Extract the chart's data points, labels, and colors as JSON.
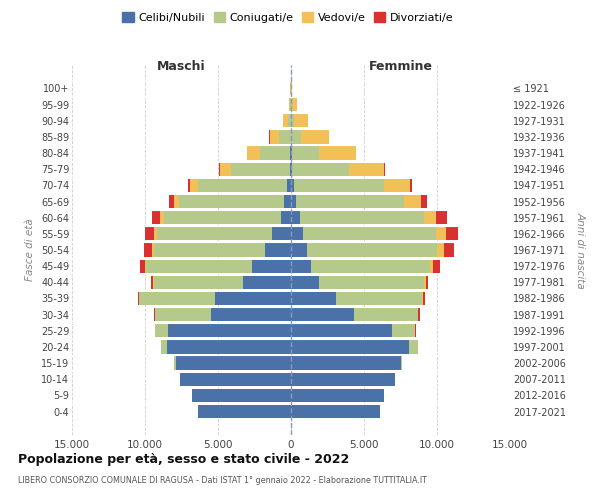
{
  "age_groups": [
    "0-4",
    "5-9",
    "10-14",
    "15-19",
    "20-24",
    "25-29",
    "30-34",
    "35-39",
    "40-44",
    "45-49",
    "50-54",
    "55-59",
    "60-64",
    "65-69",
    "70-74",
    "75-79",
    "80-84",
    "85-89",
    "90-94",
    "95-99",
    "100+"
  ],
  "birth_years": [
    "2017-2021",
    "2012-2016",
    "2007-2011",
    "2002-2006",
    "1997-2001",
    "1992-1996",
    "1987-1991",
    "1982-1986",
    "1977-1981",
    "1972-1976",
    "1967-1971",
    "1962-1966",
    "1957-1961",
    "1952-1956",
    "1947-1951",
    "1942-1946",
    "1937-1941",
    "1932-1936",
    "1927-1931",
    "1922-1926",
    "≤ 1921"
  ],
  "colors": {
    "celibi": "#4a72a8",
    "coniugati": "#b5c98a",
    "vedovi": "#f2c057",
    "divorziati": "#d93030"
  },
  "maschi": {
    "celibi": [
      6400,
      6800,
      7600,
      7900,
      8500,
      8400,
      5500,
      5200,
      3300,
      2700,
      1800,
      1300,
      700,
      450,
      250,
      100,
      50,
      20,
      8,
      2,
      1
    ],
    "coniugati": [
      0,
      0,
      0,
      80,
      400,
      900,
      3800,
      5200,
      6100,
      7200,
      7600,
      7900,
      8000,
      7200,
      6100,
      4000,
      2100,
      800,
      230,
      55,
      6
    ],
    "vedovi": [
      0,
      0,
      0,
      0,
      5,
      10,
      20,
      30,
      50,
      80,
      120,
      160,
      250,
      350,
      550,
      750,
      850,
      650,
      320,
      110,
      28
    ],
    "divorziati": [
      0,
      0,
      0,
      0,
      10,
      30,
      60,
      80,
      130,
      380,
      520,
      650,
      580,
      380,
      170,
      60,
      20,
      8,
      3,
      1,
      0
    ]
  },
  "femmine": {
    "celibi": [
      6100,
      6400,
      7100,
      7500,
      8100,
      6900,
      4300,
      3100,
      1900,
      1400,
      1100,
      850,
      600,
      350,
      180,
      80,
      35,
      15,
      6,
      2,
      1
    ],
    "coniugati": [
      0,
      0,
      0,
      80,
      600,
      1600,
      4400,
      5900,
      7200,
      8100,
      8900,
      9100,
      8500,
      7400,
      6200,
      3900,
      1900,
      700,
      180,
      42,
      4
    ],
    "vedovi": [
      0,
      0,
      0,
      0,
      8,
      15,
      30,
      60,
      120,
      260,
      480,
      680,
      850,
      1150,
      1750,
      2400,
      2500,
      1900,
      950,
      360,
      75
    ],
    "divorziati": [
      0,
      0,
      0,
      0,
      15,
      40,
      90,
      110,
      180,
      440,
      680,
      820,
      730,
      420,
      140,
      45,
      15,
      6,
      2,
      1,
      0
    ]
  },
  "title": "Popolazione per età, sesso e stato civile - 2022",
  "subtitle": "LIBERO CONSORZIO COMUNALE DI RAGUSA - Dati ISTAT 1° gennaio 2022 - Elaborazione TUTTITALIA.IT",
  "xlabel_maschi": "Maschi",
  "xlabel_femmine": "Femmine",
  "ylabel": "Fasce di età",
  "ylabel_right": "Anni di nascita",
  "xlim": 15000,
  "xticks": [
    -15000,
    -10000,
    -5000,
    0,
    5000,
    10000,
    15000
  ],
  "xtick_labels": [
    "15.000",
    "10.000",
    "5.000",
    "0",
    "5.000",
    "10.000",
    "15.000"
  ],
  "legend_labels": [
    "Celibi/Nubili",
    "Coniugati/e",
    "Vedovi/e",
    "Divorziati/e"
  ],
  "background_color": "#ffffff",
  "grid_color": "#cccccc"
}
